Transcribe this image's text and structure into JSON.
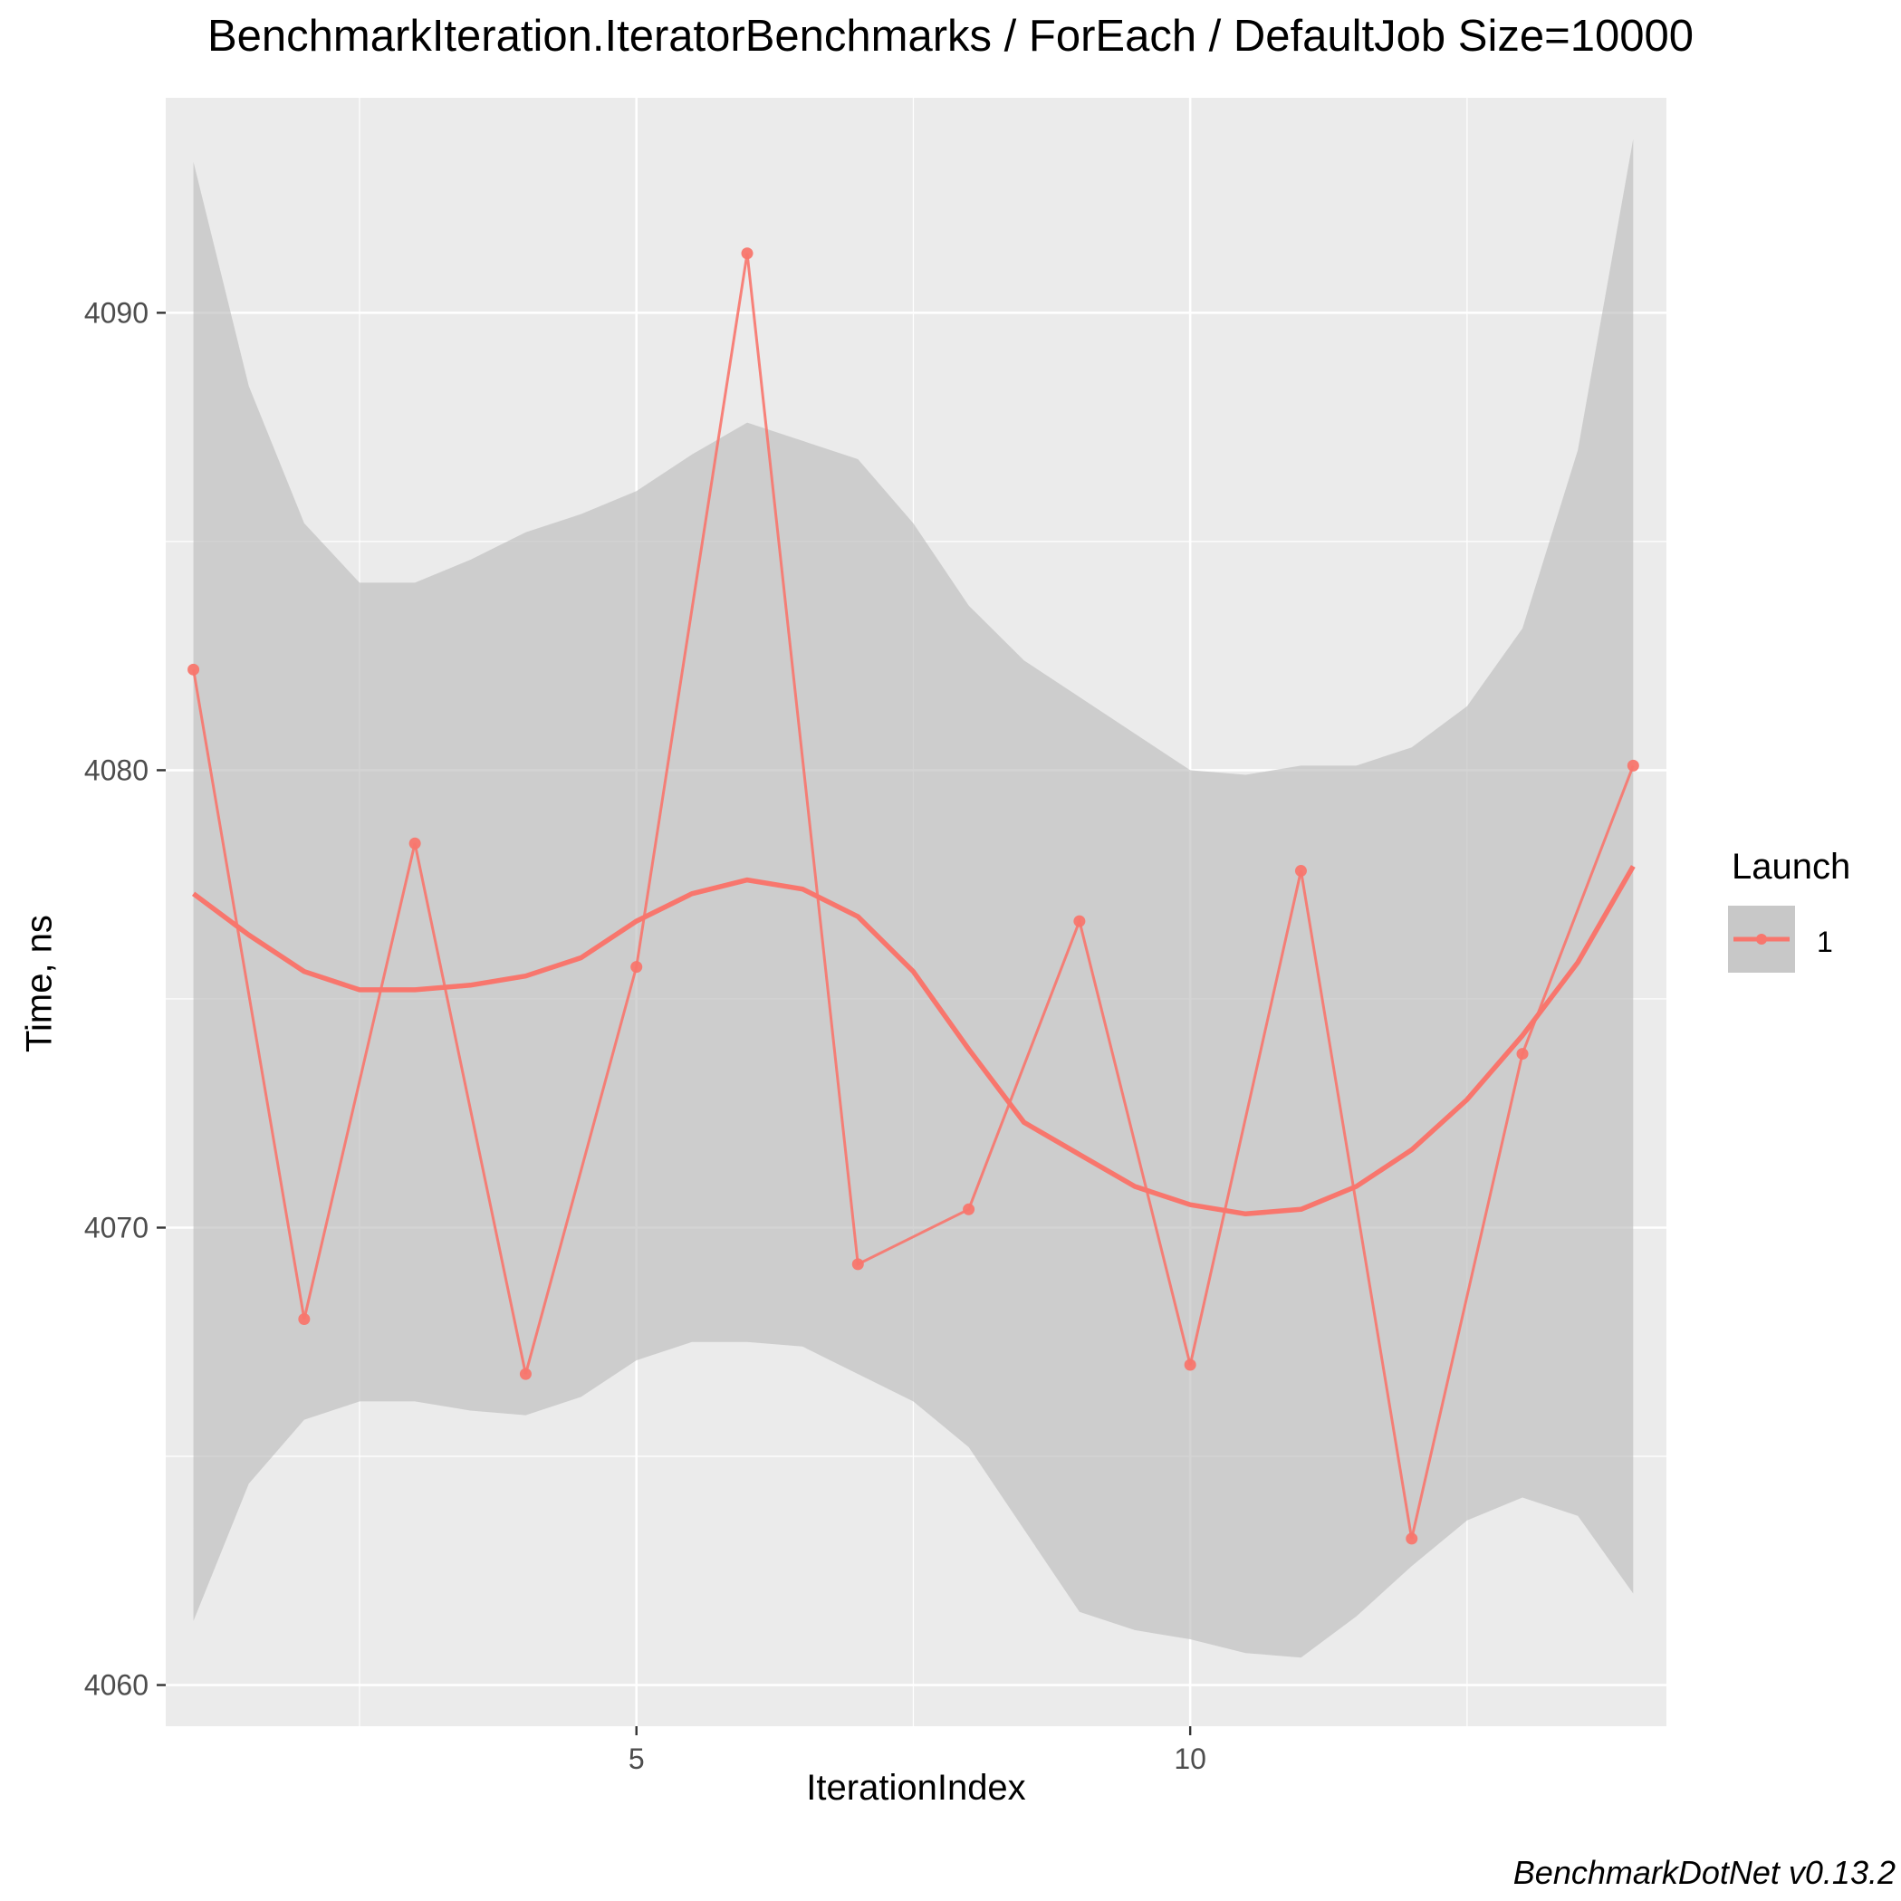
{
  "chart_data": {
    "type": "line",
    "title": "BenchmarkIteration.IteratorBenchmarks / ForEach / DefaultJob Size=10000",
    "xlabel": "IterationIndex",
    "ylabel": "Time, ns",
    "xlim": [
      0.75,
      14.3
    ],
    "ylim": [
      4059.1,
      4094.7
    ],
    "x_ticks": [
      5,
      10
    ],
    "x_tick_labels": [
      "5",
      "10"
    ],
    "x_minor_ticks": [
      2.5,
      7.5,
      12.5
    ],
    "y_ticks": [
      4060,
      4070,
      4080,
      4090
    ],
    "y_tick_labels": [
      "4060",
      "4070",
      "4080",
      "4090"
    ],
    "y_minor_ticks": [
      4065,
      4075,
      4085,
      4095
    ],
    "grid": true,
    "legend": {
      "title": "Launch",
      "position": "right"
    },
    "series": [
      {
        "name": "1",
        "color": "#F8766D",
        "x": [
          1,
          2,
          3,
          4,
          5,
          6,
          7,
          8,
          9,
          10,
          11,
          12,
          13,
          14
        ],
        "values": [
          4082.2,
          4068.0,
          4078.4,
          4066.8,
          4075.7,
          4091.3,
          4069.2,
          4070.4,
          4076.7,
          4067.0,
          4077.8,
          4063.2,
          4073.8,
          4080.1
        ]
      }
    ],
    "smooth": {
      "color": "#F8766D",
      "band_color": "#BDBDBD",
      "x": [
        1,
        1.5,
        2,
        2.5,
        3,
        3.5,
        4,
        4.5,
        5,
        5.5,
        6,
        6.5,
        7,
        7.5,
        8,
        8.5,
        9,
        9.5,
        10,
        10.5,
        11,
        11.5,
        12,
        12.5,
        13,
        13.5,
        14
      ],
      "y": [
        4077.3,
        4076.4,
        4075.6,
        4075.2,
        4075.2,
        4075.3,
        4075.5,
        4075.9,
        4076.7,
        4077.3,
        4077.6,
        4077.4,
        4076.8,
        4075.6,
        4073.9,
        4072.3,
        4071.6,
        4070.9,
        4070.5,
        4070.3,
        4070.4,
        4070.9,
        4071.7,
        4072.8,
        4074.2,
        4075.8,
        4077.9
      ],
      "upper": [
        4093.3,
        4088.4,
        4085.4,
        4084.1,
        4084.1,
        4084.6,
        4085.2,
        4085.6,
        4086.1,
        4086.9,
        4087.6,
        4087.2,
        4086.8,
        4085.4,
        4083.6,
        4082.4,
        4081.6,
        4080.8,
        4080.0,
        4079.9,
        4080.1,
        4080.1,
        4080.5,
        4081.4,
        4083.1,
        4087.0,
        4093.8
      ],
      "lower": [
        4061.4,
        4064.4,
        4065.8,
        4066.2,
        4066.2,
        4066.0,
        4065.9,
        4066.3,
        4067.1,
        4067.5,
        4067.5,
        4067.4,
        4066.8,
        4066.2,
        4065.2,
        4063.4,
        4061.6,
        4061.2,
        4061.0,
        4060.7,
        4060.6,
        4061.5,
        4062.6,
        4063.6,
        4064.1,
        4063.7,
        4062.0
      ]
    }
  },
  "caption": "BenchmarkDotNet v0.13.2"
}
